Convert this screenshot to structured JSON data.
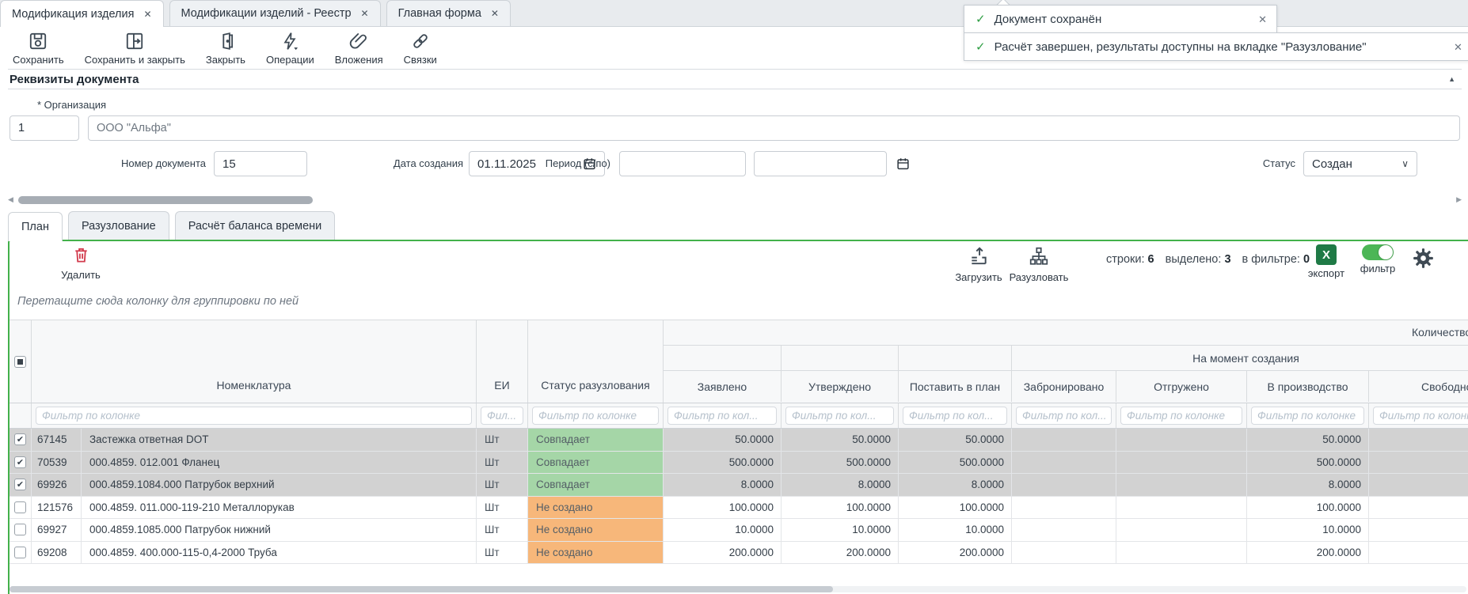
{
  "glyphs": {
    "close": "✕",
    "collapse_up": "▲",
    "scroll_left": "◀",
    "scroll_right": "▶",
    "select_chevron": "∨",
    "checkbox_check": "✔",
    "toast_check": "✓"
  },
  "window_tabs": [
    {
      "label": "Модификация изделия"
    },
    {
      "label": "Модификации изделий - Реестр"
    },
    {
      "label": "Главная форма"
    }
  ],
  "toolbar": {
    "save": "Сохранить",
    "save_close": "Сохранить и закрыть",
    "close": "Закрыть",
    "operations": "Операции",
    "attachments": "Вложения",
    "links": "Связки"
  },
  "toasts": [
    {
      "text": "Документ сохранён"
    },
    {
      "text": "Расчёт завершен, результаты доступны на вкладке \"Разузлование\""
    }
  ],
  "document_section": {
    "title": "Реквизиты документа",
    "org_label": "* Организация",
    "org_code": "1",
    "org_name": "ООО \"Альфа\"",
    "number_label": "Номер документа",
    "number_value": "15",
    "date_label": "Дата создания",
    "date_value": "01.11.2025",
    "period_label": "Период (с/по)",
    "period_from": "",
    "period_to": "",
    "status_label": "Статус",
    "status_value": "Создан"
  },
  "view_tabs": [
    {
      "label": "План"
    },
    {
      "label": "Разузлование"
    },
    {
      "label": "Расчёт баланса времени"
    }
  ],
  "grid": {
    "toolbar": {
      "delete": "Удалить",
      "load": "Загрузить",
      "explode": "Разузловать",
      "rows_label": "строки:",
      "rows_count": "6",
      "selected_label": "выделено:",
      "selected_count": "3",
      "filtered_label": "в фильтре:",
      "filtered_count": "0",
      "export": "экспорт",
      "export_icon_letter": "X",
      "filter": "фильтр"
    },
    "group_hint": "Перетащите сюда колонку для группировки по ней",
    "groups": {
      "quantity": "Количество",
      "at_creation": "На момент создания"
    },
    "columns": [
      "Номенклатура",
      "ЕИ",
      "Статус разузлования",
      "Заявлено",
      "Утверждено",
      "Поставить в план",
      "Забронировано",
      "Отгружено",
      "В производство",
      "Свободно"
    ],
    "filters": [
      "Фильтр по колонке",
      "Фил...",
      "Фильтр по колонке",
      "Фильтр по кол...",
      "Фильтр по кол...",
      "Фильтр по кол...",
      "Фильтр по кол...",
      "Фильтр по колонке",
      "Фильтр по колонке",
      "Фильтр по колонке"
    ],
    "rows": [
      {
        "checked": true,
        "selected": true,
        "id": "67145",
        "name": "Застежка ответная DOT",
        "unit": "Шт",
        "status": "Совпадает",
        "status_kind": "match",
        "claimed": "50.0000",
        "approved": "50.0000",
        "plan": "50.0000",
        "reserved": "",
        "shipped": "",
        "in_production": "50.0000",
        "free": ""
      },
      {
        "checked": true,
        "selected": true,
        "id": "70539",
        "name": "000.4859. 012.001 Фланец",
        "unit": "Шт",
        "status": "Совпадает",
        "status_kind": "match",
        "claimed": "500.0000",
        "approved": "500.0000",
        "plan": "500.0000",
        "reserved": "",
        "shipped": "",
        "in_production": "500.0000",
        "free": ""
      },
      {
        "checked": true,
        "selected": true,
        "id": "69926",
        "name": "000.4859.1084.000 Патрубок верхний",
        "unit": "Шт",
        "status": "Совпадает",
        "status_kind": "match",
        "claimed": "8.0000",
        "approved": "8.0000",
        "plan": "8.0000",
        "reserved": "",
        "shipped": "",
        "in_production": "8.0000",
        "free": ""
      },
      {
        "checked": false,
        "selected": false,
        "id": "121576",
        "name": "000.4859. 011.000-119-210 Металлорукав",
        "unit": "Шт",
        "status": "Не создано",
        "status_kind": "none",
        "claimed": "100.0000",
        "approved": "100.0000",
        "plan": "100.0000",
        "reserved": "",
        "shipped": "",
        "in_production": "100.0000",
        "free": ""
      },
      {
        "checked": false,
        "selected": false,
        "id": "69927",
        "name": "000.4859.1085.000 Патрубок нижний",
        "unit": "Шт",
        "status": "Не создано",
        "status_kind": "none",
        "claimed": "10.0000",
        "approved": "10.0000",
        "plan": "10.0000",
        "reserved": "",
        "shipped": "",
        "in_production": "10.0000",
        "free": ""
      },
      {
        "checked": false,
        "selected": false,
        "id": "69208",
        "name": "000.4859. 400.000-115-0,4-2000 Труба",
        "unit": "Шт",
        "status": "Не создано",
        "status_kind": "none",
        "claimed": "200.0000",
        "approved": "200.0000",
        "plan": "200.0000",
        "reserved": "",
        "shipped": "",
        "in_production": "200.0000",
        "free": ""
      }
    ]
  },
  "colors": {
    "accent_green": "#43b14b",
    "status_match": "#a5d6a7",
    "status_none": "#f7b77a",
    "selected_row": "#d2d2d2",
    "excel_green": "#1f7a46",
    "toast_check": "#2f9e44"
  }
}
